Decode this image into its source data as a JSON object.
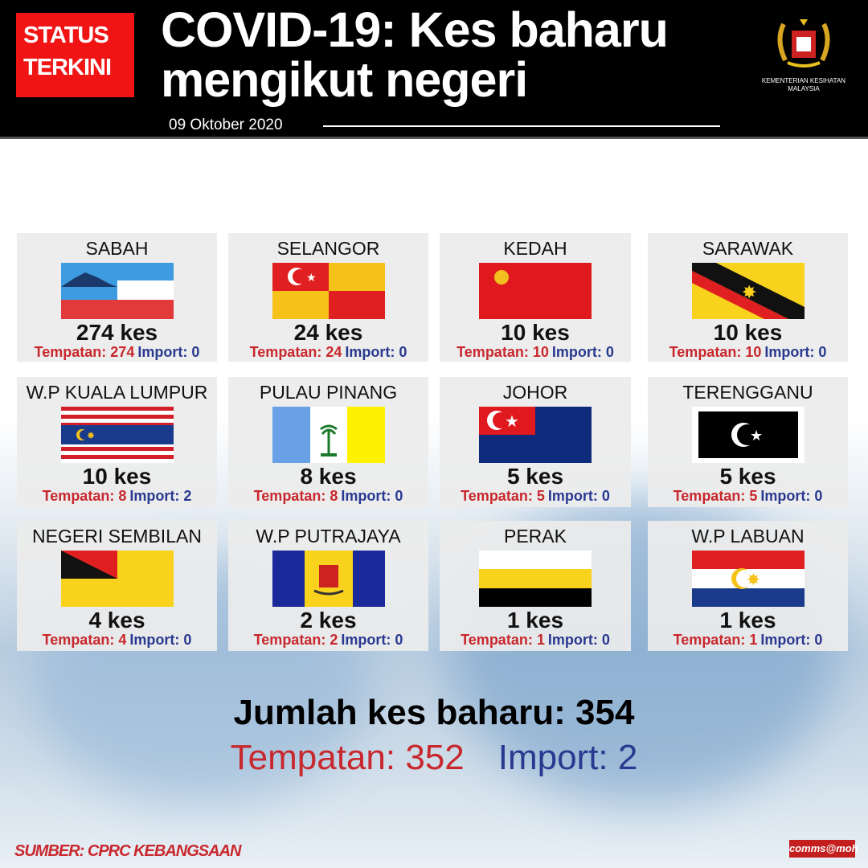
{
  "header": {
    "badge_line1": "STATUS",
    "badge_line2": "TERKINI",
    "title_line1": "COVID-19: Kes baharu",
    "title_line2": "mengikut negeri",
    "date": "09 Oktober 2020",
    "ministry": "KEMENTERIAN KESIHATAN MALAYSIA"
  },
  "colors": {
    "local": "#c8282d",
    "import": "#2a3990",
    "badge": "#f01414"
  },
  "states": [
    {
      "name": "SABAH",
      "flag": "sabah-flag",
      "total": "274 kes",
      "local": "Tempatan: 274",
      "import": "Import: 0"
    },
    {
      "name": "SELANGOR",
      "flag": "selangor-flag",
      "total": "24 kes",
      "local": "Tempatan: 24",
      "import": "Import: 0"
    },
    {
      "name": "KEDAH",
      "flag": "kedah-flag",
      "total": "10 kes",
      "local": "Tempatan: 10",
      "import": "Import: 0"
    },
    {
      "name": "SARAWAK",
      "flag": "sarawak-flag",
      "total": "10 kes",
      "local": "Tempatan: 10",
      "import": "Import: 0"
    },
    {
      "name": "W.P KUALA LUMPUR",
      "flag": "kuala-lumpur-flag",
      "total": "10 kes",
      "local": "Tempatan: 8",
      "import": "Import: 2"
    },
    {
      "name": "PULAU PINANG",
      "flag": "penang-flag",
      "total": "8 kes",
      "local": "Tempatan: 8",
      "import": "Import: 0"
    },
    {
      "name": "JOHOR",
      "flag": "johor-flag",
      "total": "5 kes",
      "local": "Tempatan: 5",
      "import": "Import: 0"
    },
    {
      "name": "TERENGGANU",
      "flag": "terengganu-flag",
      "total": "5 kes",
      "local": "Tempatan: 5",
      "import": "Import: 0"
    },
    {
      "name": "NEGERI SEMBILAN",
      "flag": "negeri-sembilan-flag",
      "total": "4 kes",
      "local": "Tempatan: 4",
      "import": "Import: 0"
    },
    {
      "name": "W.P PUTRAJAYA",
      "flag": "putrajaya-flag",
      "total": "2 kes",
      "local": "Tempatan: 2",
      "import": "Import: 0"
    },
    {
      "name": "PERAK",
      "flag": "perak-flag",
      "total": "1 kes",
      "local": "Tempatan: 1",
      "import": "Import: 0"
    },
    {
      "name": "W.P LABUAN",
      "flag": "labuan-flag",
      "total": "1 kes",
      "local": "Tempatan: 1",
      "import": "Import: 0"
    }
  ],
  "summary": {
    "total": "Jumlah kes baharu: 354",
    "local": "Tempatan: 352",
    "import": "Import: 2"
  },
  "footer": {
    "source": "SUMBER: CPRC KEBANGSAAN",
    "tag": "comms@moh"
  }
}
